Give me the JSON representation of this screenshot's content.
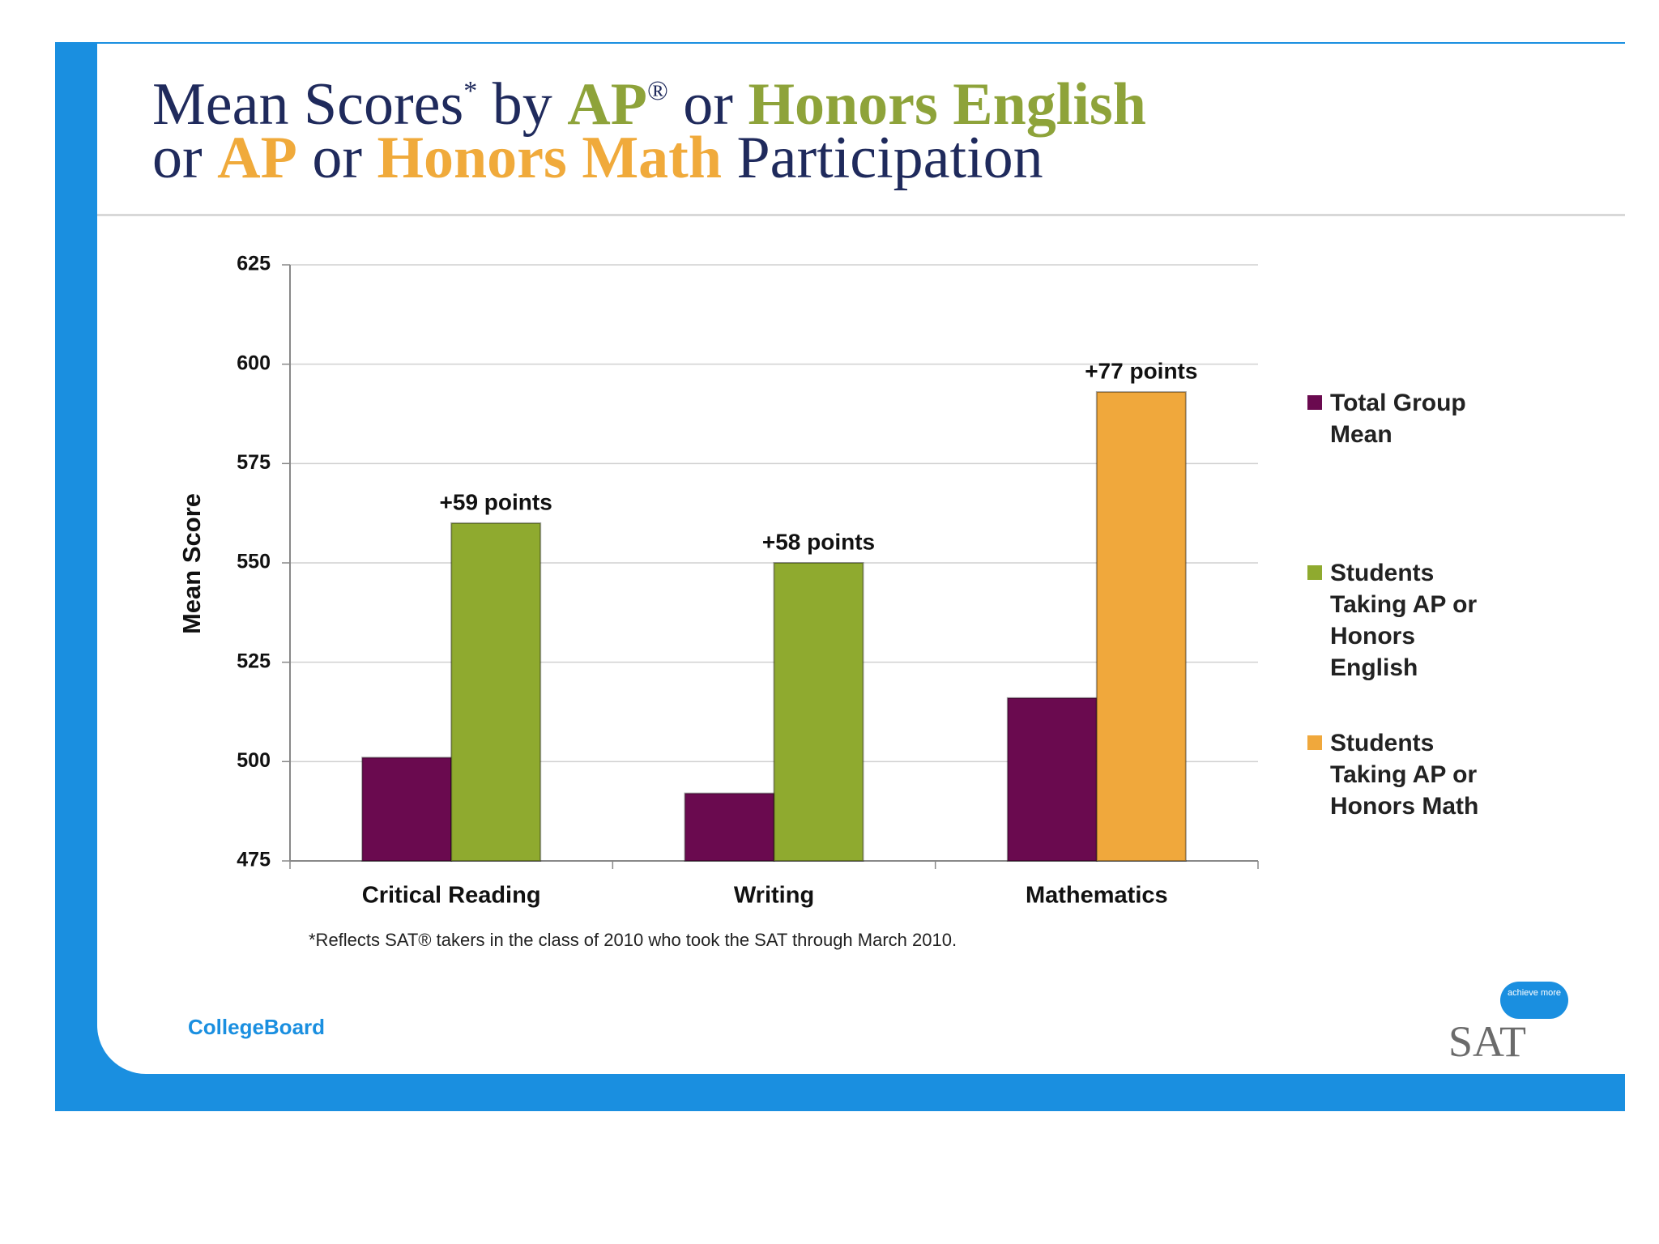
{
  "chart_data": {
    "type": "bar",
    "title_lines": [
      [
        {
          "text": "Mean Scores",
          "color": "#1f2a5c"
        },
        {
          "text": "*",
          "color": "#1f2a5c",
          "sup": true
        },
        {
          "text": " by ",
          "color": "#1f2a5c"
        },
        {
          "text": "AP",
          "color": "#8ea33a",
          "bold": true
        },
        {
          "text": "®",
          "color": "#1f2a5c",
          "sup": true
        },
        {
          "text": " or ",
          "color": "#1f2a5c"
        },
        {
          "text": "Honors English",
          "color": "#8ea33a",
          "bold": true
        }
      ],
      [
        {
          "text": "or ",
          "color": "#1f2a5c"
        },
        {
          "text": "AP",
          "color": "#f0aa3b",
          "bold": true
        },
        {
          "text": " or ",
          "color": "#1f2a5c"
        },
        {
          "text": "Honors Math",
          "color": "#f0aa3b",
          "bold": true
        },
        {
          "text": " Participation",
          "color": "#1f2a5c"
        }
      ]
    ],
    "y_label": "Mean Score",
    "categories": [
      "Critical Reading",
      "Writing",
      "Mathematics"
    ],
    "series": [
      {
        "name": "Total Group Mean",
        "color": "#6a0a4f",
        "values": [
          501,
          492,
          516
        ]
      },
      {
        "name": "Students Taking AP or Honors English",
        "color": "#8faa2f",
        "values": [
          560,
          550,
          null
        ]
      },
      {
        "name": "Students Taking AP or Honors Math",
        "color": "#f0a83c",
        "values": [
          null,
          null,
          593
        ]
      }
    ],
    "annotations": [
      "+59 points",
      "+58 points",
      "+77 points"
    ],
    "ylim": [
      475,
      625
    ],
    "yticks": [
      475,
      500,
      525,
      550,
      575,
      600,
      625
    ],
    "grid": true,
    "legend": "right",
    "footnote": "*Reflects SAT® takers in the class of 2010 who took the SAT through March 2010."
  },
  "slide": {
    "logo_left": "CollegeBoard",
    "logo_right": "SAT",
    "logo_bubble": "achieve more"
  }
}
